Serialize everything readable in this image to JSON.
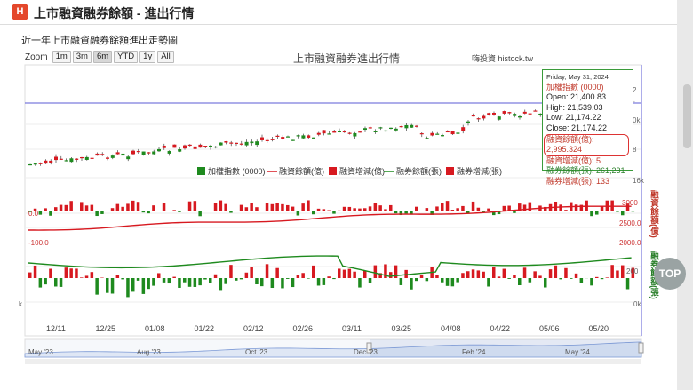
{
  "header": {
    "logo_text": "H",
    "title": "上市融資融券餘額 - 進出行情"
  },
  "subtitle": "近一年上市融資融券餘額進出走勢圖",
  "zoom": {
    "label": "Zoom",
    "buttons": [
      "1m",
      "3m",
      "6m",
      "YTD",
      "1y",
      "All"
    ],
    "active": "6m"
  },
  "chart_title": "上市融資融券進出行情",
  "credit": "嗨投資 histock.tw",
  "legend": [
    "加權指數 (0000)",
    "融資餘額(億)",
    "融資增減(億)",
    "融券餘額(張)",
    "融券增減(張)"
  ],
  "tooltip": {
    "date": "Friday, May 31, 2024",
    "index_name": "加權指數 (0000)",
    "open": "Open: 21,400.83",
    "high": "High: 21,539.03",
    "low": "Low: 21,174.22",
    "close": "Close: 21,174.22",
    "margin_balance": "融資餘額(億): 2,995.324",
    "margin_change": "融資增減(億): 5",
    "short_balance": "融券餘額(張): 261,231",
    "short_change": "融券增減(張): 133"
  },
  "right_labels": {
    "margin": "融資餘額(億)",
    "short": "融券餘額(張)"
  },
  "axes": {
    "price_ticks": [
      "2",
      "0k",
      "8",
      "16k"
    ],
    "margin_ticks": [
      "3000",
      "2500.0"
    ],
    "margin_change_ticks": [
      "0.0",
      "-100.0"
    ],
    "short_ticks": [
      "2000.0",
      "200",
      "0k"
    ],
    "left_k": "k",
    "dates": [
      "12/11",
      "12/25",
      "01/08",
      "01/22",
      "02/12",
      "02/26",
      "03/11",
      "03/25",
      "04/08",
      "04/22",
      "05/06",
      "05/20"
    ],
    "navigator": [
      "May '23",
      "Aug '23",
      "Oct '23",
      "Dec '23",
      "Feb '24",
      "May '24"
    ]
  },
  "top_button": "TOP",
  "colors": {
    "up": "#d71920",
    "down": "#1e8a1e",
    "margin_line": "#d71920",
    "short_line": "#1e8a1e",
    "accent": "#e4472b"
  },
  "chart_data": {
    "type": "candlestick",
    "title": "上市融資融券進出行情",
    "series": [
      {
        "name": "加權指數 (0000)",
        "last": {
          "date": "2024-05-31",
          "open": 21400.83,
          "high": 21539.03,
          "low": 21174.22,
          "close": 21174.22
        }
      },
      {
        "name": "融資餘額(億)",
        "last_value": 2995.324
      },
      {
        "name": "融資增減(億)",
        "last_value": 5
      },
      {
        "name": "融券餘額(張)",
        "last_value": 261231
      },
      {
        "name": "融券增減(張)",
        "last_value": 133
      }
    ],
    "x_range": [
      "2023-12-01",
      "2024-05-31"
    ]
  }
}
